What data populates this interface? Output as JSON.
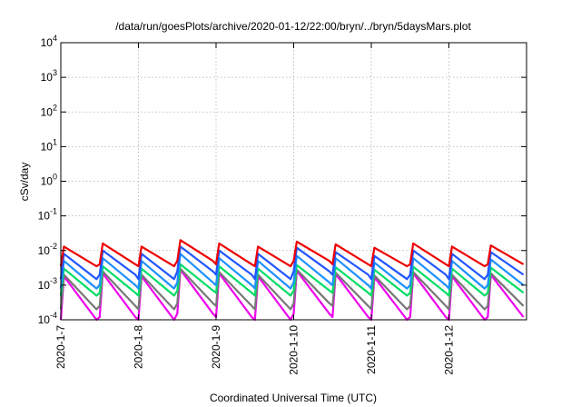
{
  "chart_data": {
    "type": "line",
    "title": "/data/run/goesPlots/archive/2020-01-12/22:00/bryn/../bryn/5daysMars.plot",
    "xlabel": "Coordinated Universal Time (UTC)",
    "ylabel": "cSv/day",
    "yscale": "log",
    "ylim": [
      0.0001,
      10000
    ],
    "xlim": [
      "2020-01-07T00:00",
      "2020-01-13T00:00"
    ],
    "grid": true,
    "x_ticks": [
      "2020-1-7",
      "2020-1-8",
      "2020-1-9",
      "2020-1-10",
      "2020-1-11",
      "2020-1-12"
    ],
    "y_ticks": [
      {
        "value": 0.0001,
        "base": "10",
        "exp": "-4"
      },
      {
        "value": 0.001,
        "base": "10",
        "exp": "-3"
      },
      {
        "value": 0.01,
        "base": "10",
        "exp": "-2"
      },
      {
        "value": 0.1,
        "base": "10",
        "exp": "-1"
      },
      {
        "value": 1,
        "base": "10",
        "exp": "0"
      },
      {
        "value": 10,
        "base": "10",
        "exp": "1"
      },
      {
        "value": 100,
        "base": "10",
        "exp": "2"
      },
      {
        "value": 1000,
        "base": "10",
        "exp": "3"
      },
      {
        "value": 10000,
        "base": "10",
        "exp": "4"
      }
    ],
    "series": [
      {
        "color": "#ee0000",
        "values": [
          [
            0.0035,
            0.013
          ],
          [
            0.004,
            0.016
          ],
          [
            0.0035,
            0.013
          ],
          [
            0.005,
            0.02
          ],
          [
            0.004,
            0.016
          ],
          [
            0.0035,
            0.013
          ],
          [
            0.005,
            0.018
          ],
          [
            0.004,
            0.015
          ],
          [
            0.0035,
            0.012
          ],
          [
            0.004,
            0.016
          ],
          [
            0.0035,
            0.013
          ],
          [
            0.004,
            0.014
          ]
        ]
      },
      {
        "color": "#2255ff",
        "values": [
          [
            0.0015,
            0.008
          ],
          [
            0.002,
            0.01
          ],
          [
            0.0015,
            0.008
          ],
          [
            0.0025,
            0.013
          ],
          [
            0.002,
            0.01
          ],
          [
            0.0015,
            0.008
          ],
          [
            0.0025,
            0.012
          ],
          [
            0.002,
            0.009
          ],
          [
            0.0015,
            0.007
          ],
          [
            0.002,
            0.01
          ],
          [
            0.0015,
            0.008
          ],
          [
            0.002,
            0.009
          ]
        ]
      },
      {
        "color": "#1e90ff",
        "values": [
          [
            0.0008,
            0.005
          ],
          [
            0.001,
            0.006
          ],
          [
            0.0008,
            0.005
          ],
          [
            0.0012,
            0.008
          ],
          [
            0.001,
            0.006
          ],
          [
            0.0008,
            0.005
          ],
          [
            0.0012,
            0.007
          ],
          [
            0.001,
            0.006
          ],
          [
            0.0008,
            0.0045
          ],
          [
            0.001,
            0.006
          ],
          [
            0.0008,
            0.005
          ],
          [
            0.001,
            0.0055
          ]
        ]
      },
      {
        "color": "#00dd66",
        "values": [
          [
            0.0005,
            0.003
          ],
          [
            0.0006,
            0.0035
          ],
          [
            0.0005,
            0.003
          ],
          [
            0.0007,
            0.004
          ],
          [
            0.0006,
            0.0035
          ],
          [
            0.0005,
            0.003
          ],
          [
            0.0007,
            0.0038
          ],
          [
            0.0006,
            0.0033
          ],
          [
            0.0005,
            0.0028
          ],
          [
            0.0006,
            0.0034
          ],
          [
            0.0005,
            0.003
          ],
          [
            0.0006,
            0.0032
          ]
        ]
      },
      {
        "color": "#777777",
        "values": [
          [
            0.0002,
            0.002
          ],
          [
            0.00025,
            0.0025
          ],
          [
            0.0002,
            0.002
          ],
          [
            0.0003,
            0.003
          ],
          [
            0.00025,
            0.0024
          ],
          [
            0.0002,
            0.002
          ],
          [
            0.0003,
            0.0028
          ],
          [
            0.00025,
            0.0023
          ],
          [
            0.0002,
            0.0019
          ],
          [
            0.00025,
            0.0024
          ],
          [
            0.0002,
            0.002
          ],
          [
            0.00025,
            0.0022
          ]
        ]
      },
      {
        "color": "#ee00ee",
        "values": [
          [
            0.0001,
            0.0018
          ],
          [
            0.00012,
            0.0022
          ],
          [
            0.0001,
            0.0018
          ],
          [
            0.00015,
            0.0028
          ],
          [
            0.00012,
            0.0022
          ],
          [
            0.0001,
            0.0018
          ],
          [
            0.00015,
            0.0026
          ],
          [
            0.00012,
            0.0021
          ],
          [
            0.0001,
            0.0017
          ],
          [
            0.00012,
            0.0022
          ],
          [
            0.0001,
            0.0018
          ],
          [
            0.00012,
            0.002
          ]
        ]
      }
    ]
  }
}
